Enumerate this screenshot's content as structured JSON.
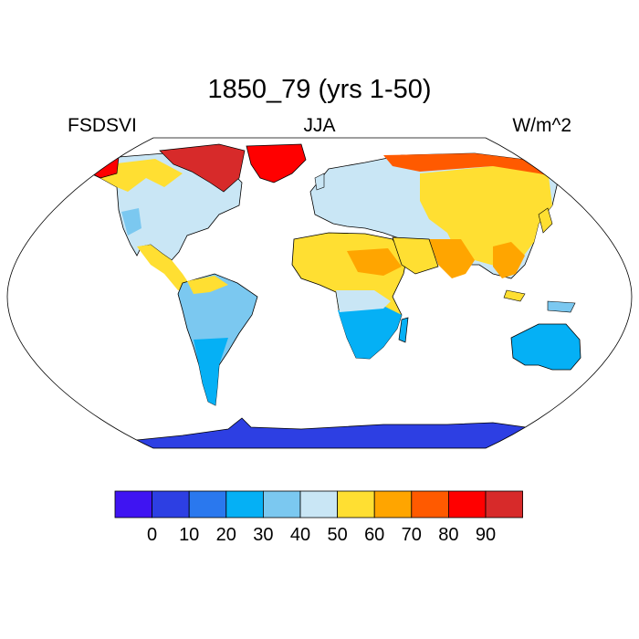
{
  "title": "1850_79 (yrs 1-50)",
  "left_label": "FSDSVI",
  "center_label": "JJA",
  "right_label": "W/m^2",
  "colorbar": {
    "colors": [
      "#3F14F2",
      "#2D3FE3",
      "#2A78EE",
      "#05B0F5",
      "#7BC8F0",
      "#C9E6F5",
      "#FFDF32",
      "#FFA500",
      "#FF5A00",
      "#FF0000",
      "#D72A2A"
    ],
    "tick_labels": [
      "0",
      "10",
      "20",
      "30",
      "40",
      "50",
      "60",
      "70",
      "80",
      "90"
    ]
  },
  "map": {
    "projection": "Robinson",
    "ocean_color": "#ffffff",
    "coastline_color": "#000000"
  }
}
